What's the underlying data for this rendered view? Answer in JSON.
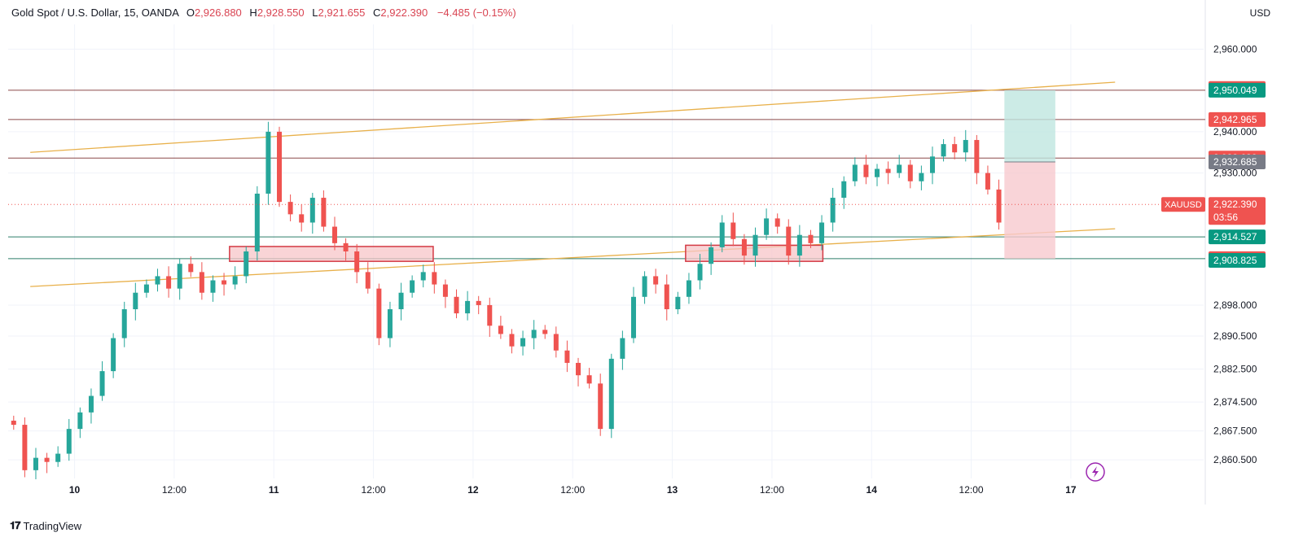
{
  "header": {
    "symbol": "Gold Spot / U.S. Dollar, 15, OANDA",
    "open_label": "O",
    "open": "2,926.880",
    "high_label": "H",
    "high": "2,928.550",
    "low_label": "L",
    "low": "2,921.655",
    "close_label": "C",
    "close": "2,922.390",
    "change": "−4.485 (−0.15%)"
  },
  "currency": "USD",
  "brand": "TradingView",
  "colors": {
    "up": "#26a69a",
    "down": "#ef5350",
    "trendline": "#e8b04a",
    "resistance": "#8b4a4a",
    "support": "#2e7d6a",
    "zone_fill": "#f7c5c8",
    "zone_stroke": "#d43a45"
  },
  "chart_data": {
    "type": "candlestick",
    "timeframe": "15",
    "y_range": [
      2856,
      2966
    ],
    "x_range": [
      0,
      54
    ],
    "y_ticks": [
      "2,960.000",
      "2,940.000",
      "2,930.000",
      "2,898.000",
      "2,890.500",
      "2,882.500",
      "2,874.500",
      "2,867.500",
      "2,860.500"
    ],
    "y_tick_values": [
      2960,
      2940,
      2930,
      2898,
      2890.5,
      2882.5,
      2874.5,
      2867.5,
      2860.5
    ],
    "x_ticks": [
      {
        "label": "10",
        "t": 3
      },
      {
        "label": "12:00",
        "t": 7.5
      },
      {
        "label": "11",
        "t": 12
      },
      {
        "label": "12:00",
        "t": 16.5
      },
      {
        "label": "12",
        "t": 21
      },
      {
        "label": "12:00",
        "t": 25.5
      },
      {
        "label": "13",
        "t": 30
      },
      {
        "label": "12:00",
        "t": 34.5
      },
      {
        "label": "14",
        "t": 39
      },
      {
        "label": "12:00",
        "t": 43.5
      },
      {
        "label": "17",
        "t": 48
      }
    ],
    "price_labels": [
      {
        "value": "2,950.477",
        "price": 2950.477,
        "color": "#ef5350"
      },
      {
        "value": "2,950.049",
        "price": 2950.049,
        "color": "#089981"
      },
      {
        "value": "2,942.965",
        "price": 2942.965,
        "color": "#ef5350"
      },
      {
        "value": "2,933.632",
        "price": 2933.632,
        "color": "#ef5350"
      },
      {
        "value": "2,932.685",
        "price": 2932.685,
        "color": "#787b86"
      },
      {
        "value": "2,922.390",
        "price": 2922.39,
        "color": "#ef5350"
      },
      {
        "value": "2,914.527",
        "price": 2914.527,
        "color": "#089981"
      },
      {
        "value": "2,909.247",
        "price": 2909.247,
        "color": "#ef5350"
      },
      {
        "value": "2,908.825",
        "price": 2908.825,
        "color": "#089981"
      }
    ],
    "countdown": "03:56",
    "symbol_tag": "XAUUSD",
    "last_price": 2922.39,
    "horizontal_lines": [
      {
        "price": 2950.049,
        "kind": "resistance"
      },
      {
        "price": 2942.965,
        "kind": "resistance"
      },
      {
        "price": 2933.632,
        "kind": "resistance"
      },
      {
        "price": 2914.527,
        "kind": "support"
      },
      {
        "price": 2909.247,
        "kind": "support"
      }
    ],
    "trendlines": [
      {
        "t1": 1,
        "p1": 2935,
        "t2": 50,
        "p2": 2952
      },
      {
        "t1": 1,
        "p1": 2902.5,
        "t2": 50,
        "p2": 2916.5
      }
    ],
    "zones": [
      {
        "t1": 10,
        "t2": 19.2,
        "p_top": 2912.2,
        "p_bottom": 2908.6
      },
      {
        "t1": 30.6,
        "t2": 36.8,
        "p_top": 2912.5,
        "p_bottom": 2908.6
      }
    ],
    "position": {
      "t1": 45,
      "t2": 47.3,
      "entry": 2932.685,
      "target": 2950.049,
      "stop": 2909.247
    },
    "close_series": [
      2869,
      2858,
      2861,
      2860,
      2862,
      2868,
      2872,
      2876,
      2882,
      2890,
      2897,
      2901,
      2903,
      2905,
      2902,
      2908,
      2906,
      2901,
      2904,
      2903,
      2905,
      2911,
      2925,
      2940,
      2923,
      2920,
      2918,
      2924,
      2917,
      2913,
      2911,
      2906,
      2902,
      2890,
      2897,
      2901,
      2904,
      2906,
      2903,
      2900,
      2896,
      2899,
      2898,
      2893,
      2891,
      2888,
      2890,
      2892,
      2891,
      2887,
      2884,
      2881,
      2879,
      2868,
      2885,
      2890,
      2900,
      2905,
      2903,
      2897,
      2900,
      2904,
      2908,
      2912,
      2918,
      2914,
      2910,
      2915,
      2919,
      2917,
      2910,
      2915,
      2913,
      2918,
      2924,
      2928,
      2932,
      2929,
      2931,
      2930,
      2932,
      2928,
      2930,
      2934,
      2937,
      2935,
      2938,
      2930,
      2926,
      2918
    ]
  }
}
